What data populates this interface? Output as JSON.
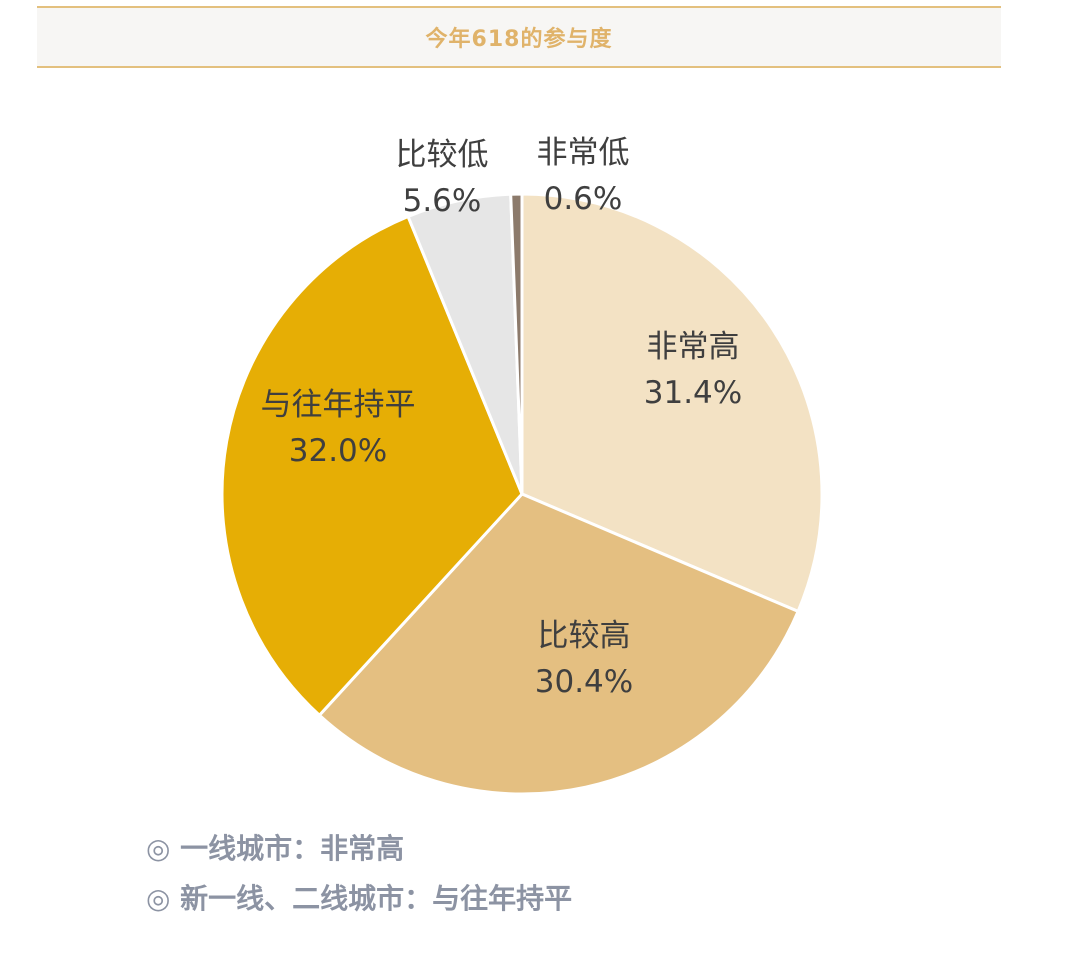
{
  "title": "今年618的参与度",
  "chart_data": {
    "type": "pie",
    "title": "今年618的参与度",
    "slices": [
      {
        "label": "非常高",
        "value": 31.4,
        "value_label": "31.4%",
        "color": "#f3e2c4"
      },
      {
        "label": "比较高",
        "value": 30.4,
        "value_label": "30.4%",
        "color": "#e4bf81"
      },
      {
        "label": "与往年持平",
        "value": 32.0,
        "value_label": "32.0%",
        "color": "#e6ae05"
      },
      {
        "label": "比较低",
        "value": 5.6,
        "value_label": "5.6%",
        "color": "#e6e6e6"
      },
      {
        "label": "非常低",
        "value": 0.6,
        "value_label": "0.6%",
        "color": "#8c7a6b"
      }
    ],
    "start": "12 o'clock",
    "direction": "clockwise",
    "legend": "none"
  },
  "notes": [
    "◎ 一线城市：非常高",
    "◎ 新一线、二线城市：与往年持平"
  ]
}
